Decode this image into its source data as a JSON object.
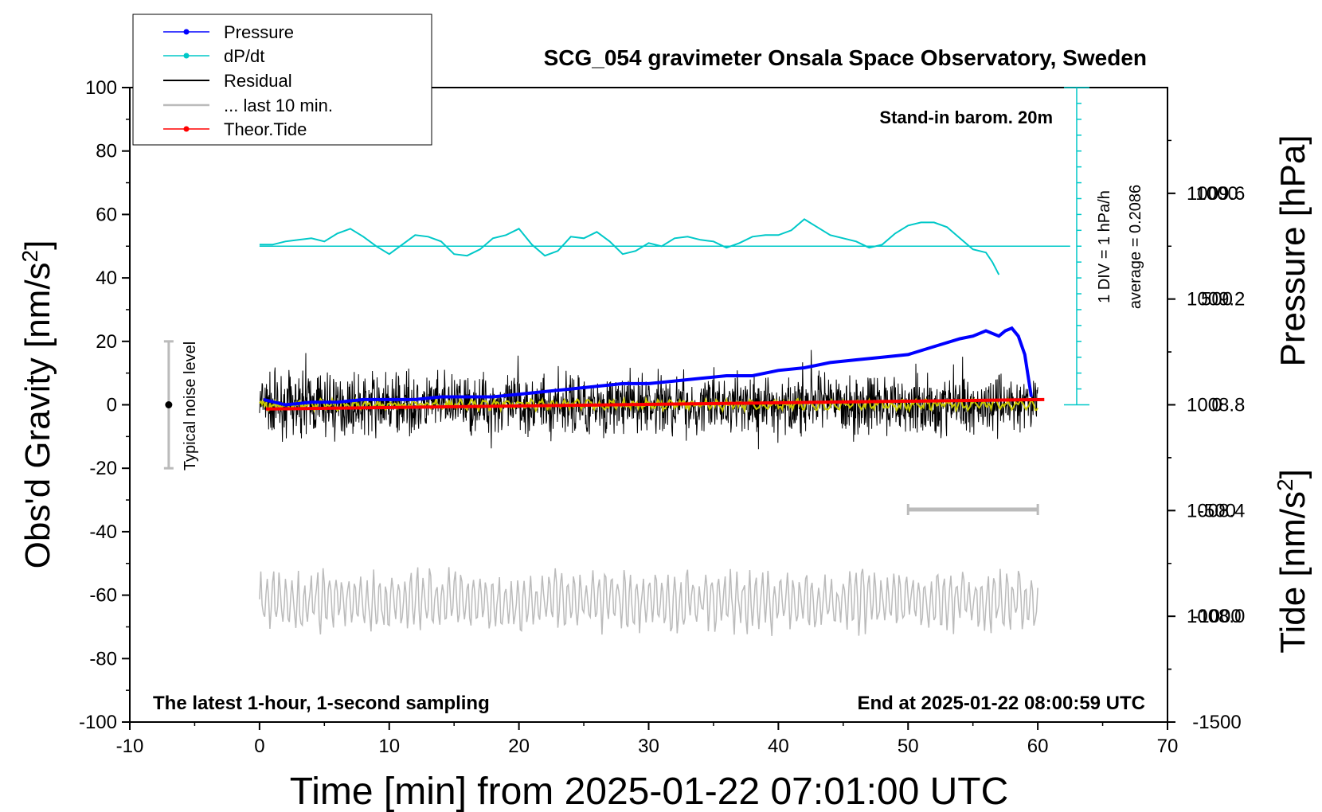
{
  "chart_data": {
    "type": "line",
    "title": "SCG_054 gravimeter Onsala Space Observatory, Sweden",
    "xlabel": "Time [min] from 2025-01-22 07:01:00 UTC",
    "ylabel_left": "Obs'd Gravity [nm/s",
    "ylabel_left_sup": "2",
    "ylabel_left_end": "]",
    "ylabel_right_pressure": "Pressure [hPa]",
    "ylabel_right_tide": "Tide [nm/s",
    "ylabel_right_tide_sup": "2",
    "ylabel_right_tide_end": "]",
    "xlim": [
      -10,
      70
    ],
    "ylim": [
      -100,
      100
    ],
    "pressure_ylim": [
      1007.6,
      1010.0
    ],
    "tide_ylim": [
      -1500,
      1500
    ],
    "x_ticks": [
      "-10",
      "0",
      "10",
      "20",
      "30",
      "40",
      "50",
      "60",
      "70"
    ],
    "y_ticks": [
      "100",
      "80",
      "60",
      "40",
      "20",
      "0",
      "-20",
      "-40",
      "-60",
      "-80",
      "-100"
    ],
    "pressure_ticks": [
      "1009.6",
      "1009.2",
      "1008.8",
      "1008.4",
      "1008.0"
    ],
    "tide_ticks": [
      "1000",
      "500",
      "0",
      "-500",
      "-1000",
      "-1500"
    ],
    "legend": {
      "position": "top-left",
      "entries": [
        "Pressure",
        "dP/dt",
        "Residual",
        "... last 10 min.",
        "Theor.Tide"
      ]
    },
    "annotations": {
      "stand_in": "Stand-in barom. 20m",
      "div_note": "1 DIV = 1 hPa/h",
      "average_note": "average = 0.2086",
      "noise_label": "Typical noise level",
      "latest_note": "The latest 1-hour, 1-second sampling",
      "end_note": "End at 2025-01-22 08:00:59 UTC"
    },
    "noise_bar": {
      "x": -7,
      "center": 0,
      "range": [
        -20,
        20
      ]
    },
    "dpdt_zero_level_nm_s2": 50,
    "last10_bracket": {
      "x_range": [
        50,
        60
      ],
      "y": -33
    },
    "series": [
      {
        "name": "Pressure",
        "color": "#0000ff",
        "units": "hPa",
        "x": [
          0.3,
          2,
          4,
          6,
          8,
          10,
          12,
          14,
          16,
          18,
          20,
          22,
          24,
          26,
          28,
          30,
          32,
          34,
          36,
          38,
          40,
          42,
          44,
          46,
          48,
          50,
          52,
          54,
          55,
          56,
          57,
          57.5,
          58,
          58.5,
          59,
          59.5
        ],
        "values": [
          1008.82,
          1008.8,
          1008.81,
          1008.81,
          1008.82,
          1008.82,
          1008.82,
          1008.83,
          1008.83,
          1008.83,
          1008.84,
          1008.85,
          1008.86,
          1008.87,
          1008.88,
          1008.88,
          1008.89,
          1008.9,
          1008.91,
          1008.91,
          1008.93,
          1008.94,
          1008.96,
          1008.97,
          1008.98,
          1008.99,
          1009.02,
          1009.05,
          1009.06,
          1009.08,
          1009.06,
          1009.08,
          1009.09,
          1009.06,
          1008.99,
          1008.83
        ]
      },
      {
        "name": "dP/dt",
        "color": "#00c8c8",
        "units": "nm/s2 display (1 DIV = 1 hPa/h)",
        "x": [
          0,
          1,
          2,
          3,
          4,
          5,
          6,
          7,
          8,
          9,
          10,
          11,
          12,
          13,
          14,
          15,
          16,
          17,
          18,
          19,
          20,
          21,
          22,
          23,
          24,
          25,
          26,
          27,
          28,
          29,
          30,
          31,
          32,
          33,
          34,
          35,
          36,
          37,
          38,
          39,
          40,
          41,
          42,
          43,
          44,
          45,
          46,
          47,
          48,
          49,
          50,
          51,
          52,
          53,
          54,
          55,
          56,
          56.5,
          57
        ],
        "values": [
          50.5,
          50.5,
          51.5,
          52,
          52.5,
          51.5,
          54,
          55.5,
          53,
          50,
          47.5,
          50.5,
          53.5,
          53,
          51.5,
          47.5,
          47,
          49,
          52.5,
          53.5,
          55.5,
          50.5,
          47,
          48.5,
          53,
          52.5,
          54.5,
          51.5,
          47.5,
          48.5,
          51,
          50,
          52.5,
          53,
          52,
          51.5,
          49.5,
          51,
          53,
          53.5,
          53.5,
          55,
          58.5,
          56,
          53.5,
          52.5,
          51.5,
          49.5,
          50.5,
          54,
          56.5,
          57.5,
          57.5,
          56,
          52.5,
          49,
          48,
          45,
          41
        ]
      },
      {
        "name": "Residual",
        "color": "#000000",
        "x_range": [
          0,
          60
        ],
        "typical_range": [
          -10,
          10
        ]
      },
      {
        "name": "Residual smoothed",
        "color": "#c8c800",
        "x_range": [
          0,
          60
        ],
        "level": 0
      },
      {
        "name": "... last 10 min.",
        "color": "#bbbbbb",
        "x_range": [
          0,
          60
        ],
        "center": -62,
        "range": [
          -75,
          -51
        ]
      },
      {
        "name": "Theor.Tide",
        "color": "#ff0000",
        "units": "nm/s2",
        "x": [
          0.5,
          60.5
        ],
        "values": [
          -20,
          25
        ]
      }
    ]
  }
}
